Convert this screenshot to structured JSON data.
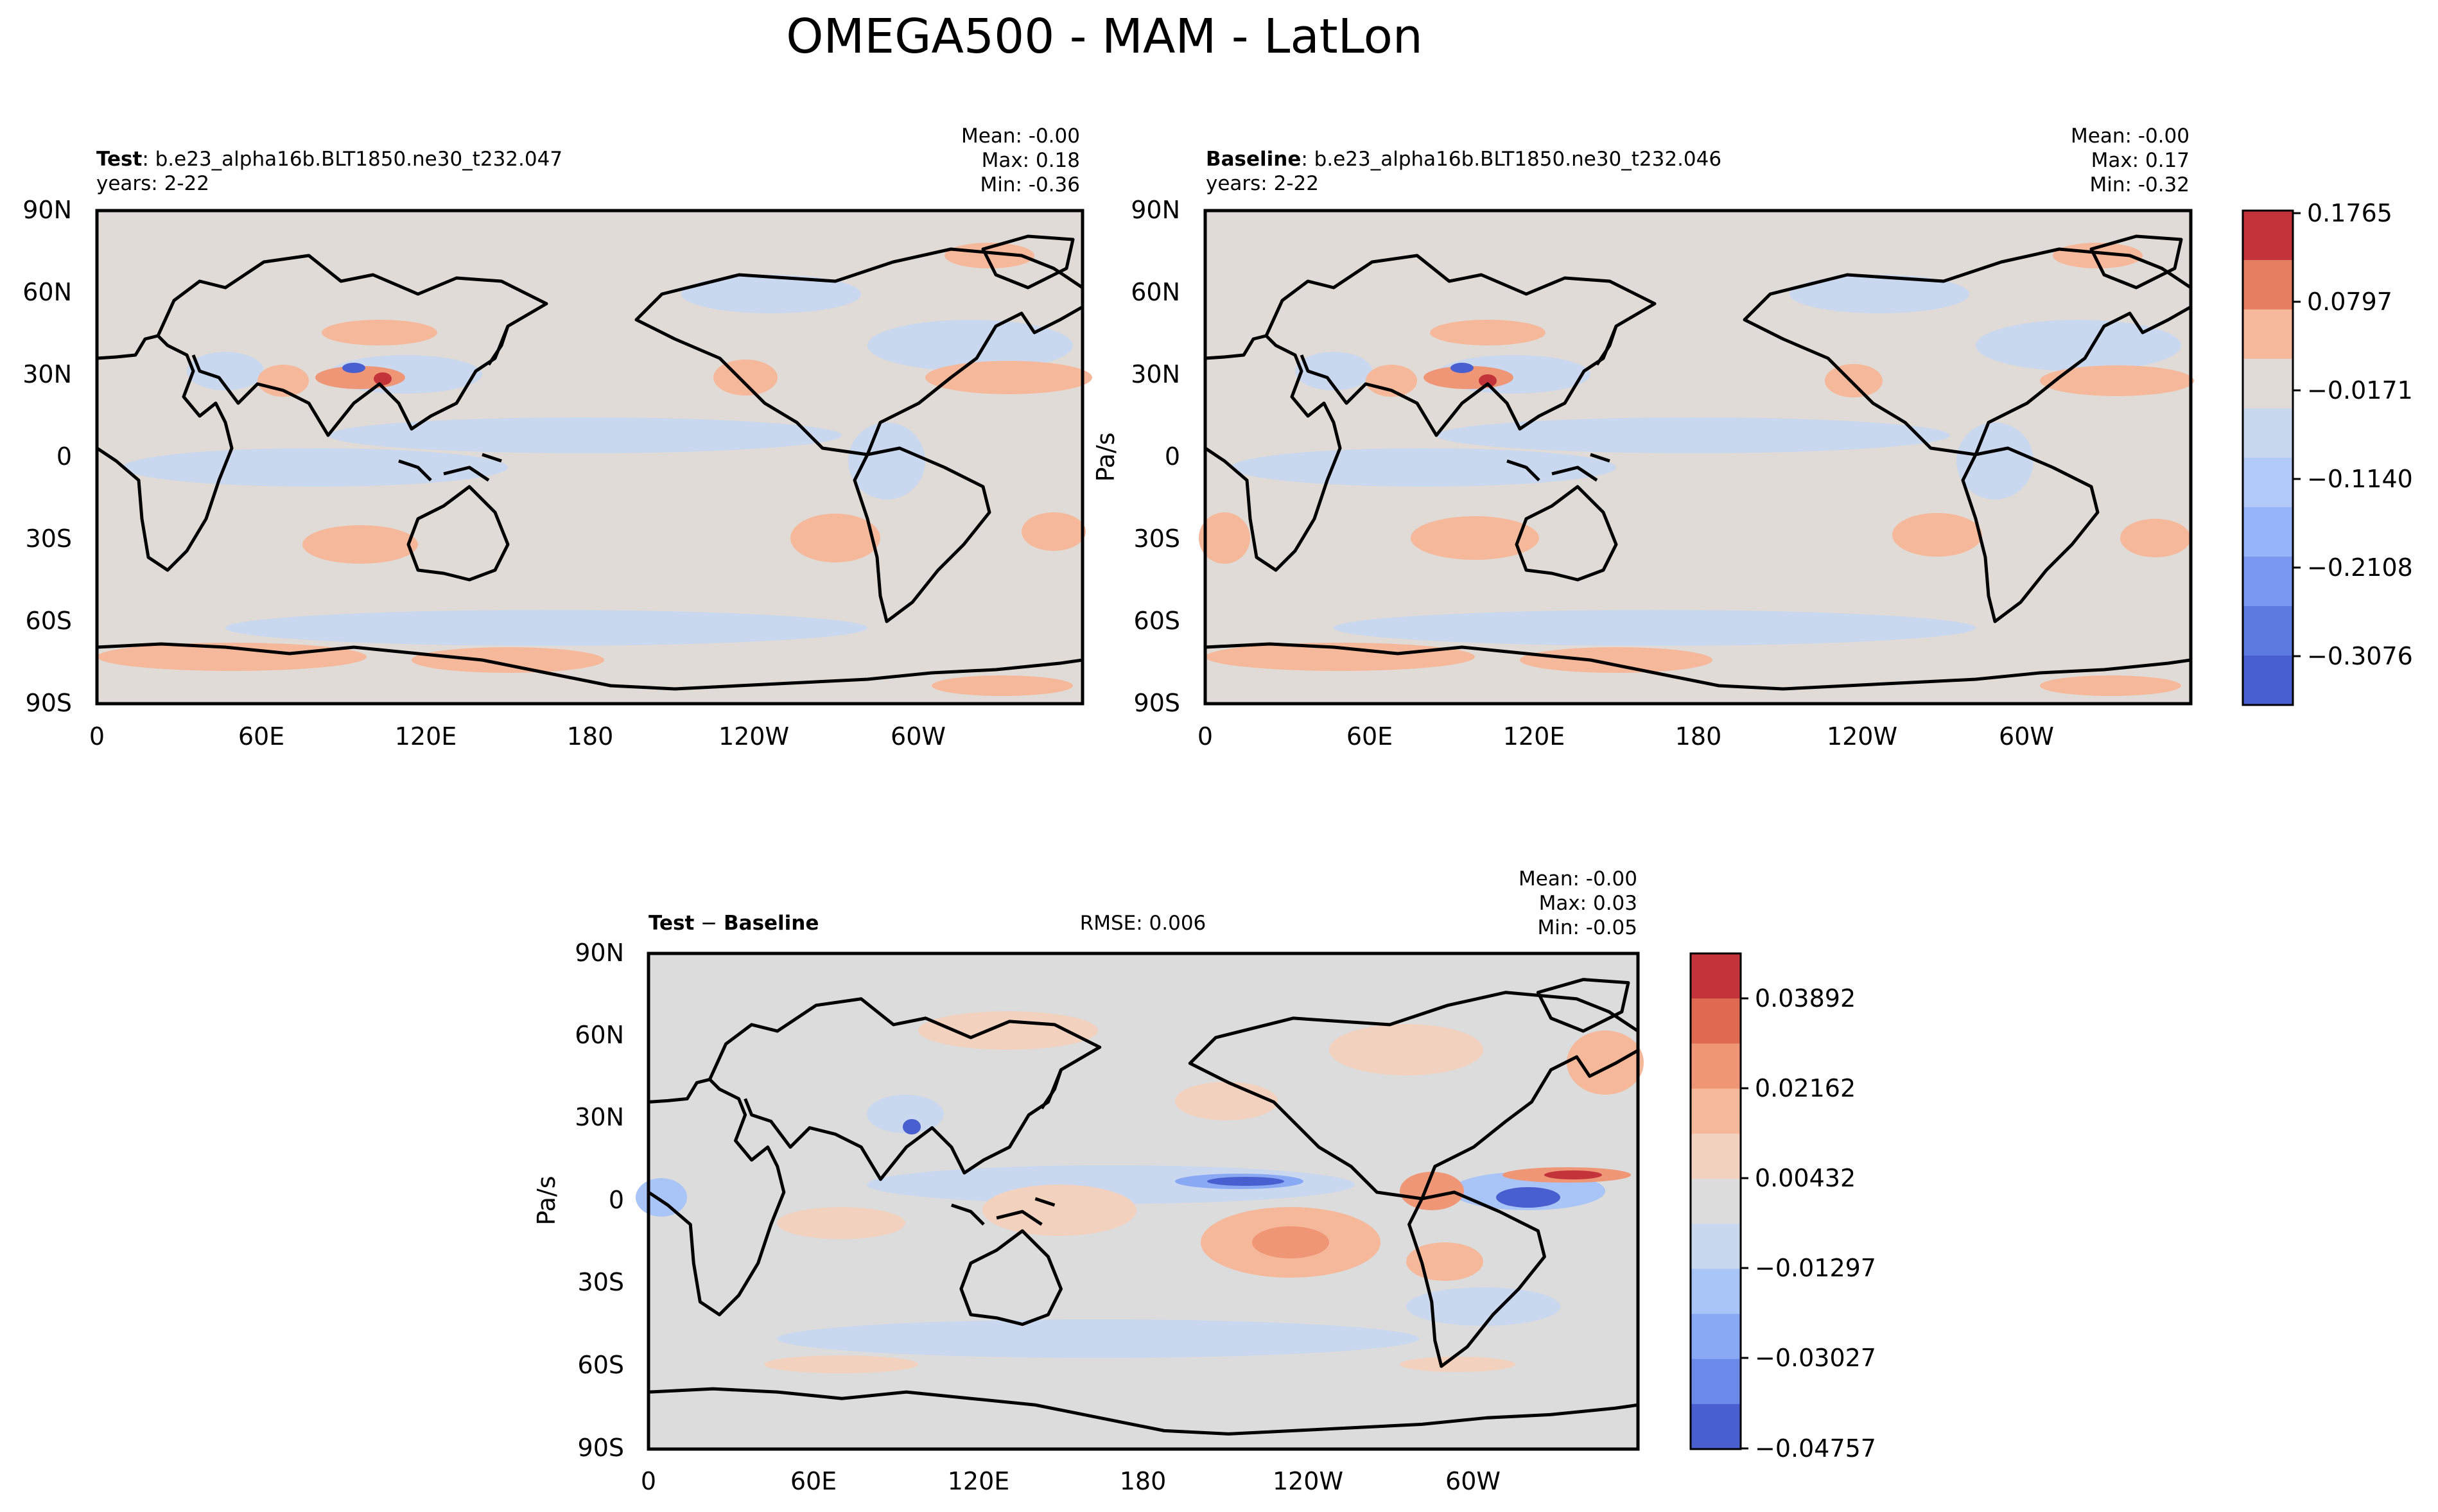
{
  "figure": {
    "title": "OMEGA500 - MAM - LatLon"
  },
  "panels": {
    "test": {
      "label_bold": "Test",
      "label_rest": ": b.e23_alpha16b.BLT1850.ne30_t232.047",
      "years": "years: 2-22",
      "stats": {
        "mean": "Mean: -0.00",
        "max": "Max:  0.18",
        "min": "Min: -0.36"
      }
    },
    "baseline": {
      "label_bold": "Baseline",
      "label_rest": ": b.e23_alpha16b.BLT1850.ne30_t232.046",
      "years": "years: 2-22",
      "ylabel": "Pa/s",
      "stats": {
        "mean": "Mean: -0.00",
        "max": "Max:  0.17",
        "min": "Min: -0.32"
      }
    },
    "diff": {
      "label_bold_1": "Test",
      "label_sep": " − ",
      "label_bold_2": "Baseline",
      "rmse": "RMSE: 0.006",
      "ylabel": "Pa/s",
      "stats": {
        "mean": "Mean: -0.00",
        "max": "Max:  0.03",
        "min": "Min: -0.05"
      }
    }
  },
  "axes": {
    "lat_ticks": [
      "90N",
      "60N",
      "30N",
      "0",
      "30S",
      "60S",
      "90S"
    ],
    "lon_ticks": [
      "0",
      "60E",
      "120E",
      "180",
      "120W",
      "60W"
    ]
  },
  "colorbars": {
    "main": {
      "labels": [
        "0.1765",
        "0.0797",
        "−0.0171",
        "−0.1140",
        "−0.2108",
        "−0.3076"
      ],
      "colors": [
        "#c3333a",
        "#e67e64",
        "#f6b89b",
        "#e0dbd6",
        "#c9d7ef",
        "#b1c9f7",
        "#97b4fa",
        "#7a98f0",
        "#5c7ae0",
        "#4a5fcf"
      ]
    },
    "diff": {
      "labels": [
        "0.03892",
        "0.02162",
        "0.00432",
        "−0.01297",
        "−0.03027",
        "−0.04757"
      ],
      "colors": [
        "#c3333a",
        "#df6a52",
        "#ef9676",
        "#f6b89b",
        "#f2d1bf",
        "#dcdcdc",
        "#c9d7ef",
        "#a9c4f7",
        "#8aa9f5",
        "#6b8aea",
        "#4a5fcf"
      ]
    }
  },
  "map_colors": {
    "background_main": "#e0dbd6",
    "background_diff": "#dcdcdc",
    "positive_light": "#f6b89b",
    "positive_mid": "#ef9676",
    "positive_strong": "#c3333a",
    "negative_light": "#c9d7ef",
    "negative_mid": "#a9c4f7",
    "negative_strong": "#4a5fcf"
  }
}
